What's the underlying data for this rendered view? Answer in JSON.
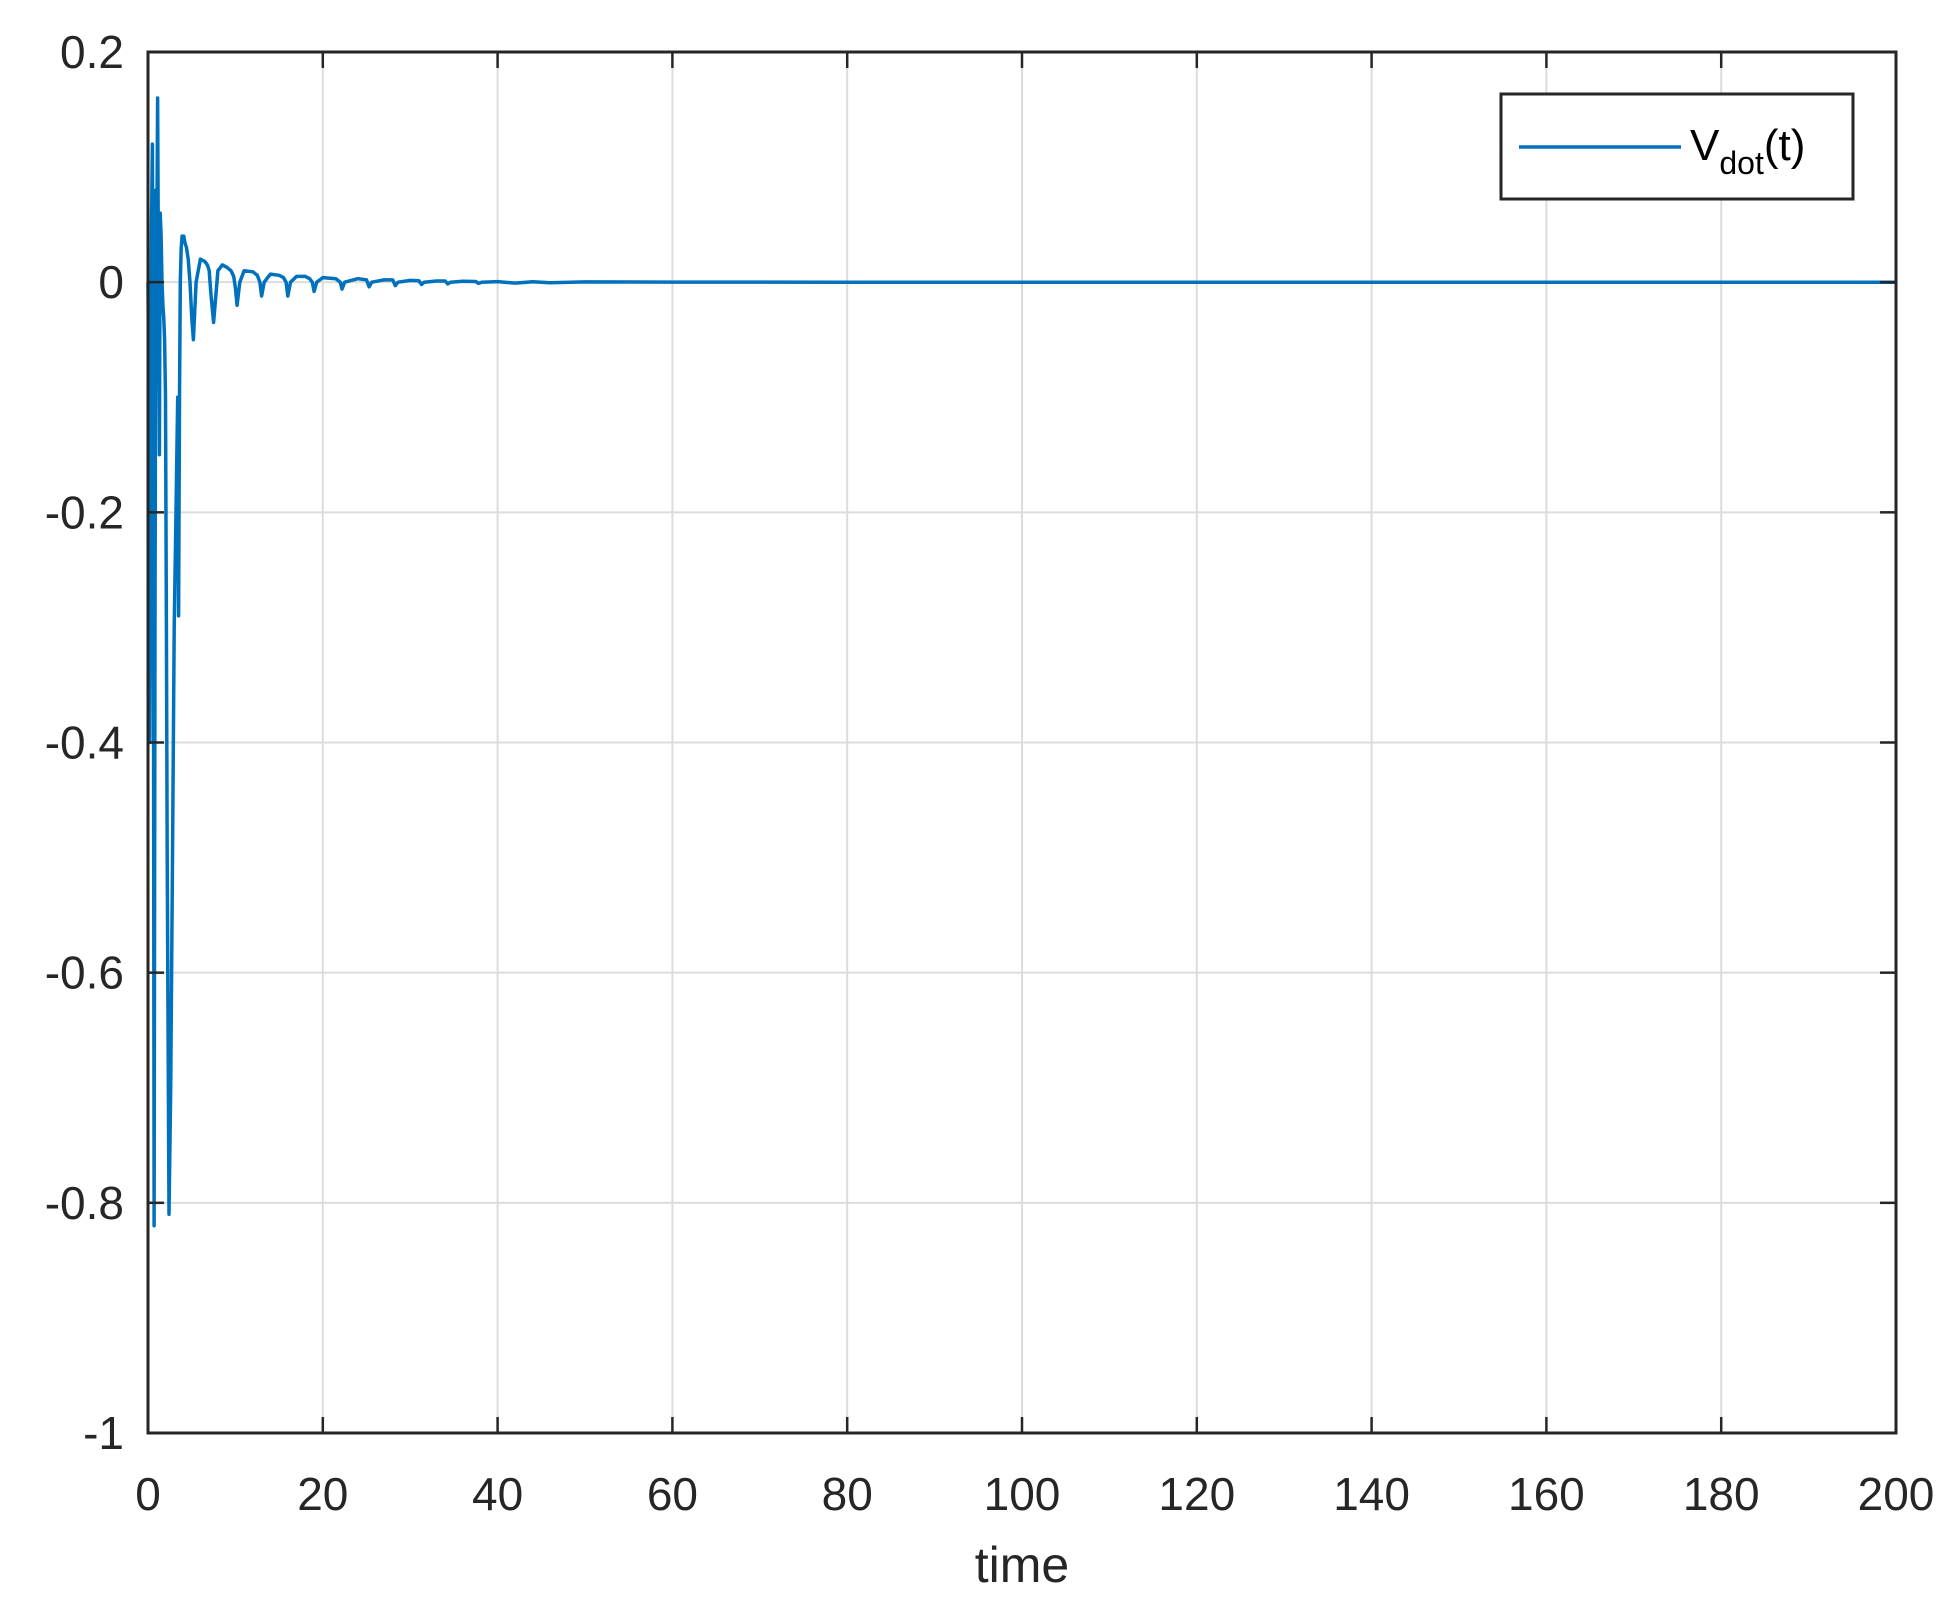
{
  "chart_data": {
    "type": "line",
    "title": "",
    "xlabel": "time",
    "ylabel": "",
    "xlim": [
      0,
      200
    ],
    "ylim": [
      -1,
      0.2
    ],
    "grid": true,
    "legend_position": "top-right",
    "xticks": [
      0,
      20,
      40,
      60,
      80,
      100,
      120,
      140,
      160,
      180,
      200
    ],
    "xtick_labels": [
      "0",
      "20",
      "40",
      "60",
      "80",
      "100",
      "120",
      "140",
      "160",
      "180",
      "200"
    ],
    "yticks": [
      0.2,
      0,
      -0.2,
      -0.4,
      -0.6,
      -0.8,
      -1
    ],
    "ytick_labels": [
      "0.2",
      "0",
      "-0.2",
      "-0.4",
      "-0.6",
      "-0.8",
      "-1"
    ],
    "series": [
      {
        "name_main": "V",
        "name_sub": "dot",
        "name_suffix": "(t)",
        "color": "#0072BD",
        "x": [
          0,
          0.1,
          0.2,
          0.3,
          0.4,
          0.5,
          0.6,
          0.7,
          0.8,
          0.9,
          1.0,
          1.1,
          1.2,
          1.3,
          1.4,
          1.5,
          1.6,
          1.7,
          1.8,
          1.9,
          2.0,
          2.1,
          2.2,
          2.4,
          2.6,
          2.8,
          3.0,
          3.2,
          3.4,
          3.5,
          3.6,
          3.7,
          3.8,
          3.9,
          4.0,
          4.1,
          4.2,
          4.4,
          4.6,
          4.8,
          5.0,
          5.2,
          5.5,
          6.0,
          6.5,
          6.8,
          7.0,
          7.2,
          7.5,
          8.0,
          8.5,
          9.0,
          9.5,
          9.8,
          10.0,
          10.2,
          10.5,
          11.0,
          12.0,
          12.5,
          12.8,
          13.0,
          13.3,
          14.0,
          15.0,
          15.5,
          15.8,
          16.0,
          16.3,
          17.0,
          18.0,
          18.5,
          18.8,
          19.0,
          19.3,
          20.0,
          21.5,
          22.0,
          22.2,
          22.5,
          24.0,
          25.0,
          25.3,
          25.6,
          27.0,
          28.0,
          28.3,
          28.6,
          30.0,
          31.0,
          31.3,
          31.6,
          33.0,
          34.0,
          34.3,
          34.6,
          36.0,
          37.5,
          37.8,
          38.2,
          40.0,
          42.0,
          44.0,
          46.0,
          50.0,
          60.0,
          80.0,
          100.0,
          150.0,
          200.0
        ],
        "values": [
          0,
          -0.12,
          -0.4,
          -0.2,
          0.05,
          0.12,
          -0.1,
          -0.82,
          -0.3,
          0.08,
          0.02,
          0.16,
          0.0,
          -0.15,
          0.06,
          0.04,
          0.0,
          -0.02,
          -0.03,
          -0.05,
          -0.1,
          -0.3,
          -0.5,
          -0.81,
          -0.7,
          -0.5,
          -0.3,
          -0.2,
          -0.1,
          -0.29,
          -0.1,
          0.0,
          0.03,
          0.04,
          0.035,
          0.04,
          0.035,
          0.03,
          0.02,
          0.0,
          -0.03,
          -0.05,
          0.0,
          0.02,
          0.018,
          0.015,
          0.01,
          -0.01,
          -0.035,
          0.01,
          0.015,
          0.013,
          0.01,
          0.005,
          -0.005,
          -0.02,
          0.0,
          0.01,
          0.009,
          0.006,
          0.0,
          -0.012,
          0.0,
          0.007,
          0.006,
          0.004,
          0.0,
          -0.012,
          0.0,
          0.005,
          0.005,
          0.003,
          0.0,
          -0.008,
          0.0,
          0.004,
          0.003,
          0.0,
          -0.006,
          0.0,
          0.003,
          0.002,
          -0.004,
          0.0,
          0.002,
          0.002,
          -0.003,
          0.0,
          0.0015,
          0.0012,
          -0.002,
          0.0,
          0.001,
          0.001,
          -0.0015,
          0.0,
          0.0008,
          0.0006,
          -0.001,
          0.0,
          0.0005,
          -0.0008,
          0.0003,
          -0.0005,
          0.0002,
          0.0001,
          0.0,
          0.0,
          0.0,
          0.0
        ]
      }
    ]
  }
}
